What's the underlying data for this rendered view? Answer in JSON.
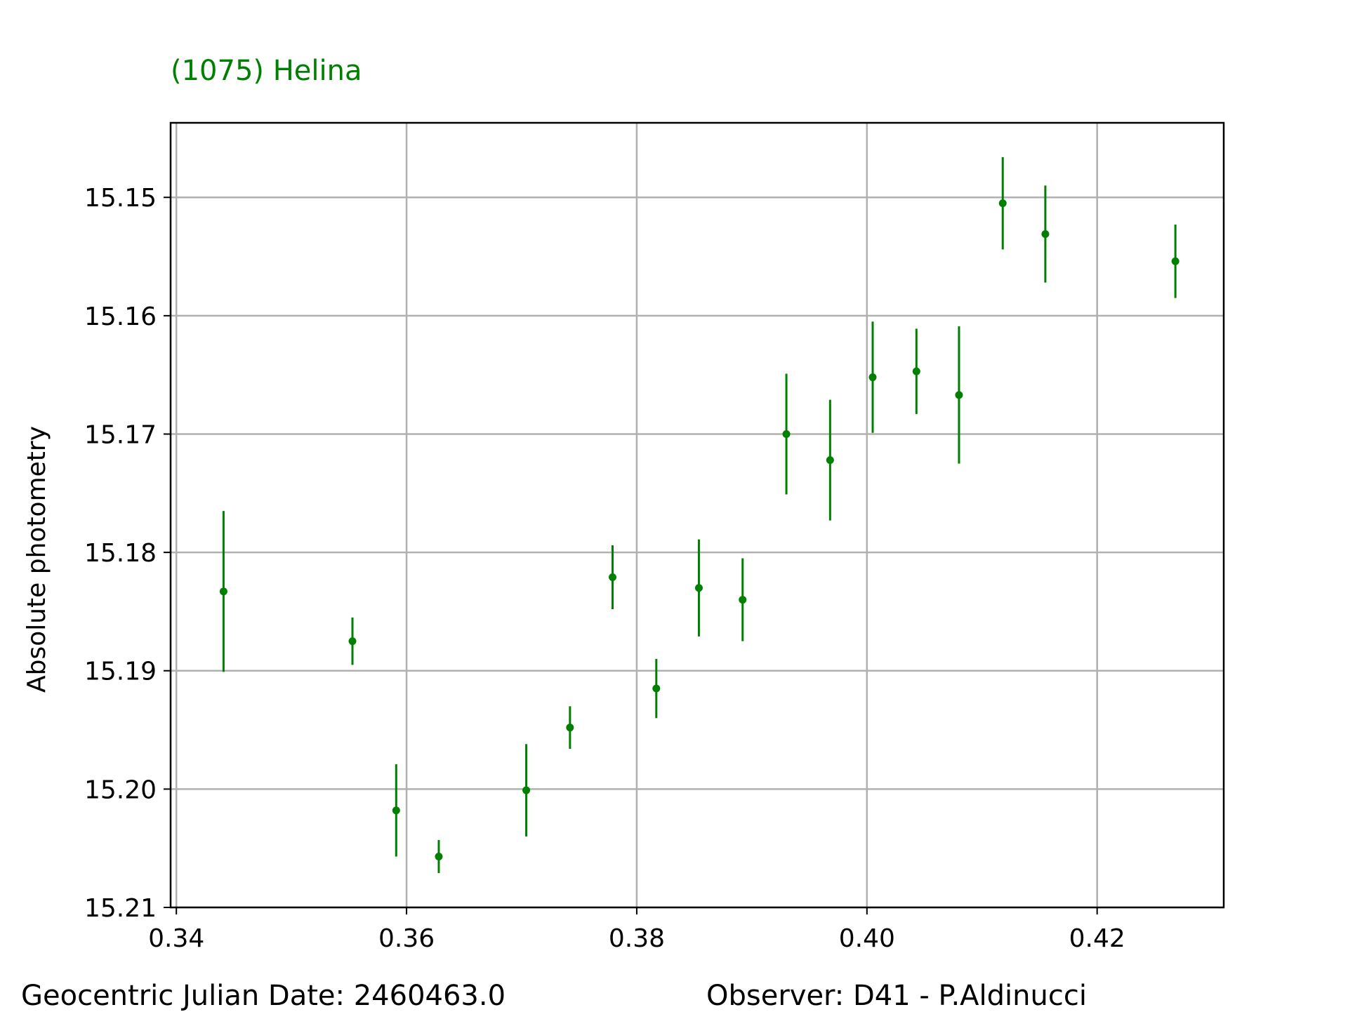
{
  "title": "(1075) Helina",
  "footer": {
    "left": "Geocentric Julian Date: 2460463.0",
    "right": "Observer: D41 - P.Aldinucci"
  },
  "colors": {
    "series": "#008000",
    "grid": "#b0b0b0",
    "axis": "#000000"
  },
  "chart_data": {
    "type": "scatter",
    "title": "(1075) Helina",
    "xlabel": "",
    "ylabel": "Absolute photometry",
    "xlim": [
      0.3395,
      0.431
    ],
    "ylim": [
      15.21,
      15.1437
    ],
    "y_inverted": true,
    "grid": true,
    "xticks": [
      0.34,
      0.36,
      0.38,
      0.4,
      0.42
    ],
    "xtick_labels": [
      "0.34",
      "0.36",
      "0.38",
      "0.40",
      "0.42"
    ],
    "yticks": [
      15.15,
      15.16,
      15.17,
      15.18,
      15.19,
      15.2,
      15.21
    ],
    "ytick_labels": [
      "15.15",
      "15.16",
      "15.17",
      "15.18",
      "15.19",
      "15.20",
      "15.21"
    ],
    "series": [
      {
        "marker": "point-with-errorbar",
        "points": [
          {
            "x": 0.3441,
            "y": 15.1833,
            "err": 0.0068
          },
          {
            "x": 0.3553,
            "y": 15.1875,
            "err": 0.002
          },
          {
            "x": 0.3591,
            "y": 15.2018,
            "err": 0.0039
          },
          {
            "x": 0.3628,
            "y": 15.2057,
            "err": 0.0014
          },
          {
            "x": 0.3704,
            "y": 15.2001,
            "err": 0.0039
          },
          {
            "x": 0.3742,
            "y": 15.1948,
            "err": 0.0018
          },
          {
            "x": 0.3779,
            "y": 15.1821,
            "err": 0.0027
          },
          {
            "x": 0.3817,
            "y": 15.1915,
            "err": 0.0025
          },
          {
            "x": 0.3854,
            "y": 15.183,
            "err": 0.0041
          },
          {
            "x": 0.3892,
            "y": 15.184,
            "err": 0.0035
          },
          {
            "x": 0.393,
            "y": 15.17,
            "err": 0.0051
          },
          {
            "x": 0.3968,
            "y": 15.1722,
            "err": 0.0051
          },
          {
            "x": 0.4005,
            "y": 15.1652,
            "err": 0.0047
          },
          {
            "x": 0.4043,
            "y": 15.1647,
            "err": 0.0036
          },
          {
            "x": 0.408,
            "y": 15.1667,
            "err": 0.0058
          },
          {
            "x": 0.4118,
            "y": 15.1505,
            "err": 0.0039
          },
          {
            "x": 0.4155,
            "y": 15.1531,
            "err": 0.0041
          },
          {
            "x": 0.4268,
            "y": 15.1554,
            "err": 0.0031
          }
        ]
      }
    ]
  }
}
